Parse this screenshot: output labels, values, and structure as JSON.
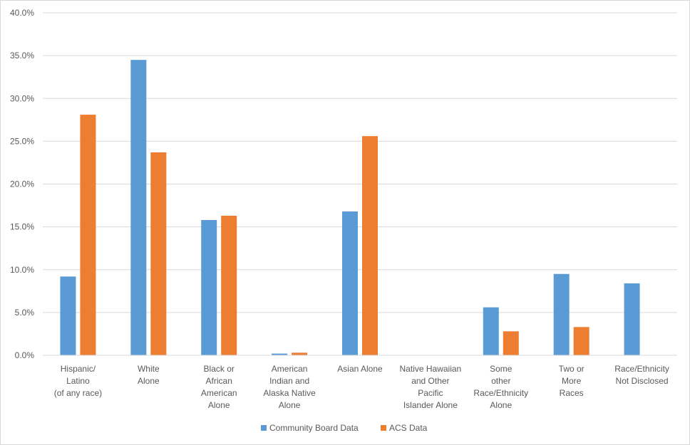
{
  "chart_data": {
    "type": "bar",
    "categories": [
      [
        "Hispanic/",
        "Latino",
        "(of any race)"
      ],
      [
        "White",
        "Alone"
      ],
      [
        "Black or",
        "African",
        "American",
        "Alone"
      ],
      [
        "American",
        "Indian and",
        "Alaska Native",
        "Alone"
      ],
      [
        "Asian Alone"
      ],
      [
        "Native Hawaiian",
        "and Other",
        "Pacific",
        "Islander Alone"
      ],
      [
        "Some",
        "other",
        "Race/Ethnicity",
        "Alone"
      ],
      [
        "Two or",
        "More",
        "Races"
      ],
      [
        "Race/Ethnicity",
        "Not Disclosed"
      ]
    ],
    "series": [
      {
        "name": "Community Board  Data",
        "color": "#5b9bd5",
        "values": [
          9.2,
          34.5,
          15.8,
          0.2,
          16.8,
          0.0,
          5.6,
          9.5,
          8.4
        ]
      },
      {
        "name": "ACS Data",
        "color": "#ed7d31",
        "values": [
          28.1,
          23.7,
          16.3,
          0.3,
          25.6,
          0.0,
          2.8,
          3.3,
          0.0
        ]
      }
    ],
    "y_ticks": [
      "0.0%",
      "5.0%",
      "10.0%",
      "15.0%",
      "20.0%",
      "25.0%",
      "30.0%",
      "35.0%",
      "40.0%"
    ],
    "ylim": [
      0,
      40
    ],
    "grid": true,
    "legend": "bottom"
  }
}
